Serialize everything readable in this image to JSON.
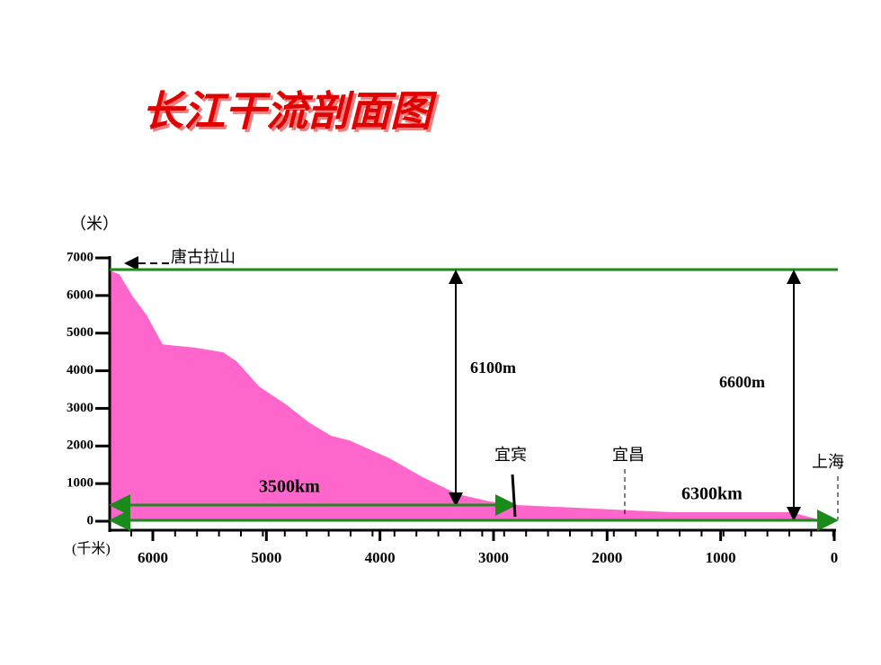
{
  "chart_data": {
    "type": "area",
    "title": "长江干流剖面图",
    "y_label": "（米）",
    "x_label": "(千米)",
    "x": [
      6389,
      6294,
      6175,
      6056,
      5913,
      5619,
      5381,
      5262,
      5063,
      4825,
      4627,
      4429,
      4270,
      3913,
      3635,
      3317,
      3040,
      2802,
      2286,
      1810,
      1413,
      381,
      143,
      0
    ],
    "values": [
      6680,
      6560,
      5970,
      5490,
      4700,
      4610,
      4490,
      4250,
      3580,
      3100,
      2630,
      2270,
      2150,
      1670,
      1190,
      720,
      530,
      430,
      360,
      290,
      240,
      240,
      50,
      0
    ],
    "color": "#ff66cc",
    "xlim": [
      6380,
      0
    ],
    "ylim": [
      0,
      7000
    ],
    "xticks": [
      6000,
      5000,
      4000,
      3000,
      2000,
      1000,
      0
    ],
    "yticks": [
      0,
      1000,
      2000,
      3000,
      4000,
      5000,
      6000,
      7000
    ],
    "annotations": [
      "唐古拉山",
      "6100m",
      "6600m",
      "3500km",
      "6300km",
      "宜宾",
      "宜昌",
      "上海"
    ]
  }
}
